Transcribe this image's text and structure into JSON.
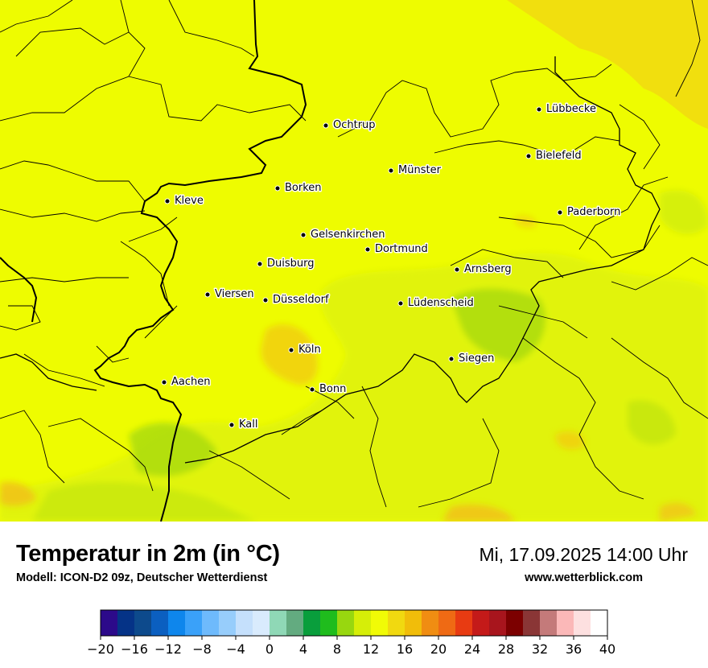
{
  "map": {
    "title": "Temperatur in 2m (in °C)",
    "model": "Modell: ICON-D2 09z, Deutscher Wetterdienst",
    "datetime": "Mi, 17.09.2025 14:00 Uhr",
    "website": "www.wetterblick.com",
    "cities": [
      {
        "name": "Lübbecke"
      },
      {
        "name": "Ochtrup"
      },
      {
        "name": "Bielefeld"
      },
      {
        "name": "Münster"
      },
      {
        "name": "Borken"
      },
      {
        "name": "Kleve"
      },
      {
        "name": "Paderborn"
      },
      {
        "name": "Gelsenkirchen"
      },
      {
        "name": "Dortmund"
      },
      {
        "name": "Duisburg"
      },
      {
        "name": "Arnsberg"
      },
      {
        "name": "Viersen"
      },
      {
        "name": "Düsseldorf"
      },
      {
        "name": "Lüdenscheid"
      },
      {
        "name": "Köln"
      },
      {
        "name": "Siegen"
      },
      {
        "name": "Aachen"
      },
      {
        "name": "Bonn"
      },
      {
        "name": "Kall"
      }
    ]
  },
  "legend": {
    "unit": "°C",
    "min": -20,
    "max": 40,
    "step": 2,
    "tick_labels": [
      "−20",
      "−16",
      "−12",
      "−8",
      "−4",
      "0",
      "4",
      "8",
      "12",
      "16",
      "20",
      "24",
      "28",
      "32",
      "36",
      "40"
    ],
    "colors": [
      "#2c0a8a",
      "#053387",
      "#0d4a8c",
      "#0b5fc0",
      "#0e86ec",
      "#3aa1f9",
      "#6ebafc",
      "#97cdfb",
      "#c5e0fc",
      "#d9ebfd",
      "#8fd8b6",
      "#63ab80",
      "#099e3c",
      "#1fbc1d",
      "#98d70f",
      "#d6ee08",
      "#f1fb06",
      "#f1d910",
      "#f1bd0a",
      "#f08d12",
      "#ef6a14",
      "#e83b12",
      "#c41a19",
      "#a8151d",
      "#7c0000",
      "#8a3636",
      "#c47a7a",
      "#fbb8b8",
      "#fde0e0",
      "#ffffff"
    ]
  }
}
